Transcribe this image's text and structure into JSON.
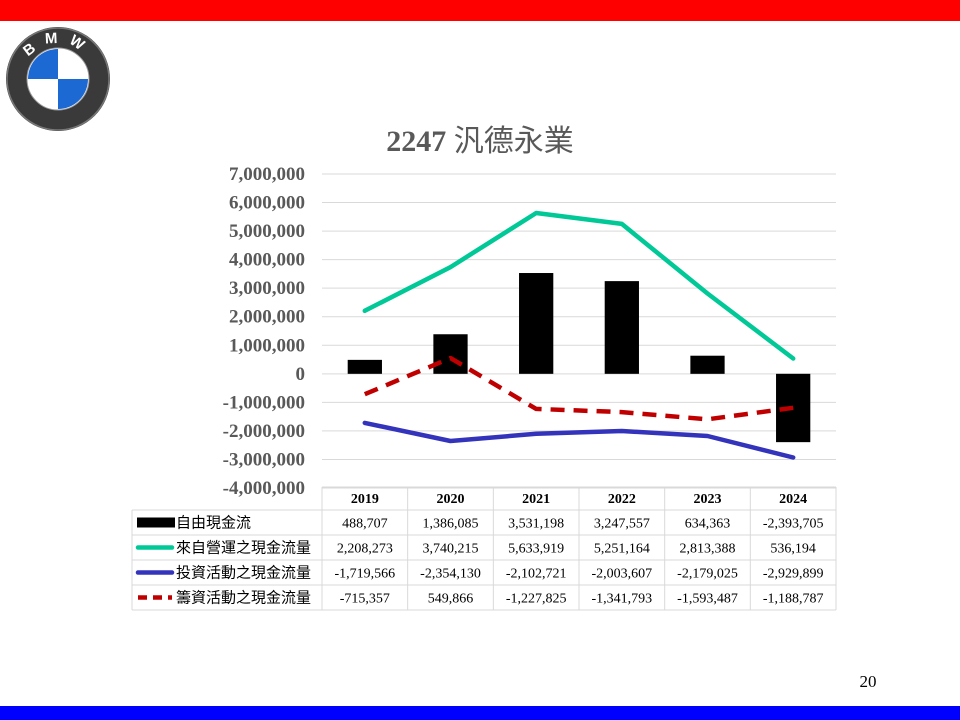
{
  "slide": {
    "title_code": "2247",
    "title_name": "汎德永業",
    "page_number": "20",
    "colors": {
      "top_bar": "#ff0000",
      "bottom_bar": "#0000ff"
    },
    "logo": {
      "letters": "BMW"
    }
  },
  "chart_data": {
    "type": "bar",
    "title": "2247 汎德永業",
    "categories": [
      "2019",
      "2020",
      "2021",
      "2022",
      "2023",
      "2024"
    ],
    "ylim": [
      -4000000,
      7000000
    ],
    "ytick_step": 1000000,
    "yticks": [
      "7,000,000",
      "6,000,000",
      "5,000,000",
      "4,000,000",
      "3,000,000",
      "2,000,000",
      "1,000,000",
      "0",
      "-1,000,000",
      "-2,000,000",
      "-3,000,000",
      "-4,000,000"
    ],
    "grid": true,
    "legend": "data-table",
    "series": [
      {
        "name": "自由現金流",
        "kind": "bar",
        "color": "#000000",
        "dashed": false,
        "values": [
          488707,
          1386085,
          3531198,
          3247557,
          634363,
          -2393705
        ],
        "labels": [
          "488,707",
          "1,386,085",
          "3,531,198",
          "3,247,557",
          "634,363",
          "-2,393,705"
        ]
      },
      {
        "name": "來自營運之現金流量",
        "kind": "line",
        "color": "#00c896",
        "dashed": false,
        "values": [
          2208273,
          3740215,
          5633919,
          5251164,
          2813388,
          536194
        ],
        "labels": [
          "2,208,273",
          "3,740,215",
          "5,633,919",
          "5,251,164",
          "2,813,388",
          "536,194"
        ]
      },
      {
        "name": "投資活動之現金流量",
        "kind": "line",
        "color": "#3333bb",
        "dashed": false,
        "values": [
          -1719566,
          -2354130,
          -2102721,
          -2003607,
          -2179025,
          -2929899
        ],
        "labels": [
          "-1,719,566",
          "-2,354,130",
          "-2,102,721",
          "-2,003,607",
          "-2,179,025",
          "-2,929,899"
        ]
      },
      {
        "name": "籌資活動之現金流量",
        "kind": "line",
        "color": "#c00000",
        "dashed": true,
        "values": [
          -715357,
          549866,
          -1227825,
          -1341793,
          -1593487,
          -1188787
        ],
        "labels": [
          "-715,357",
          "549,866",
          "-1,227,825",
          "-1,341,793",
          "-1,593,487",
          "-1,188,787"
        ]
      }
    ]
  }
}
